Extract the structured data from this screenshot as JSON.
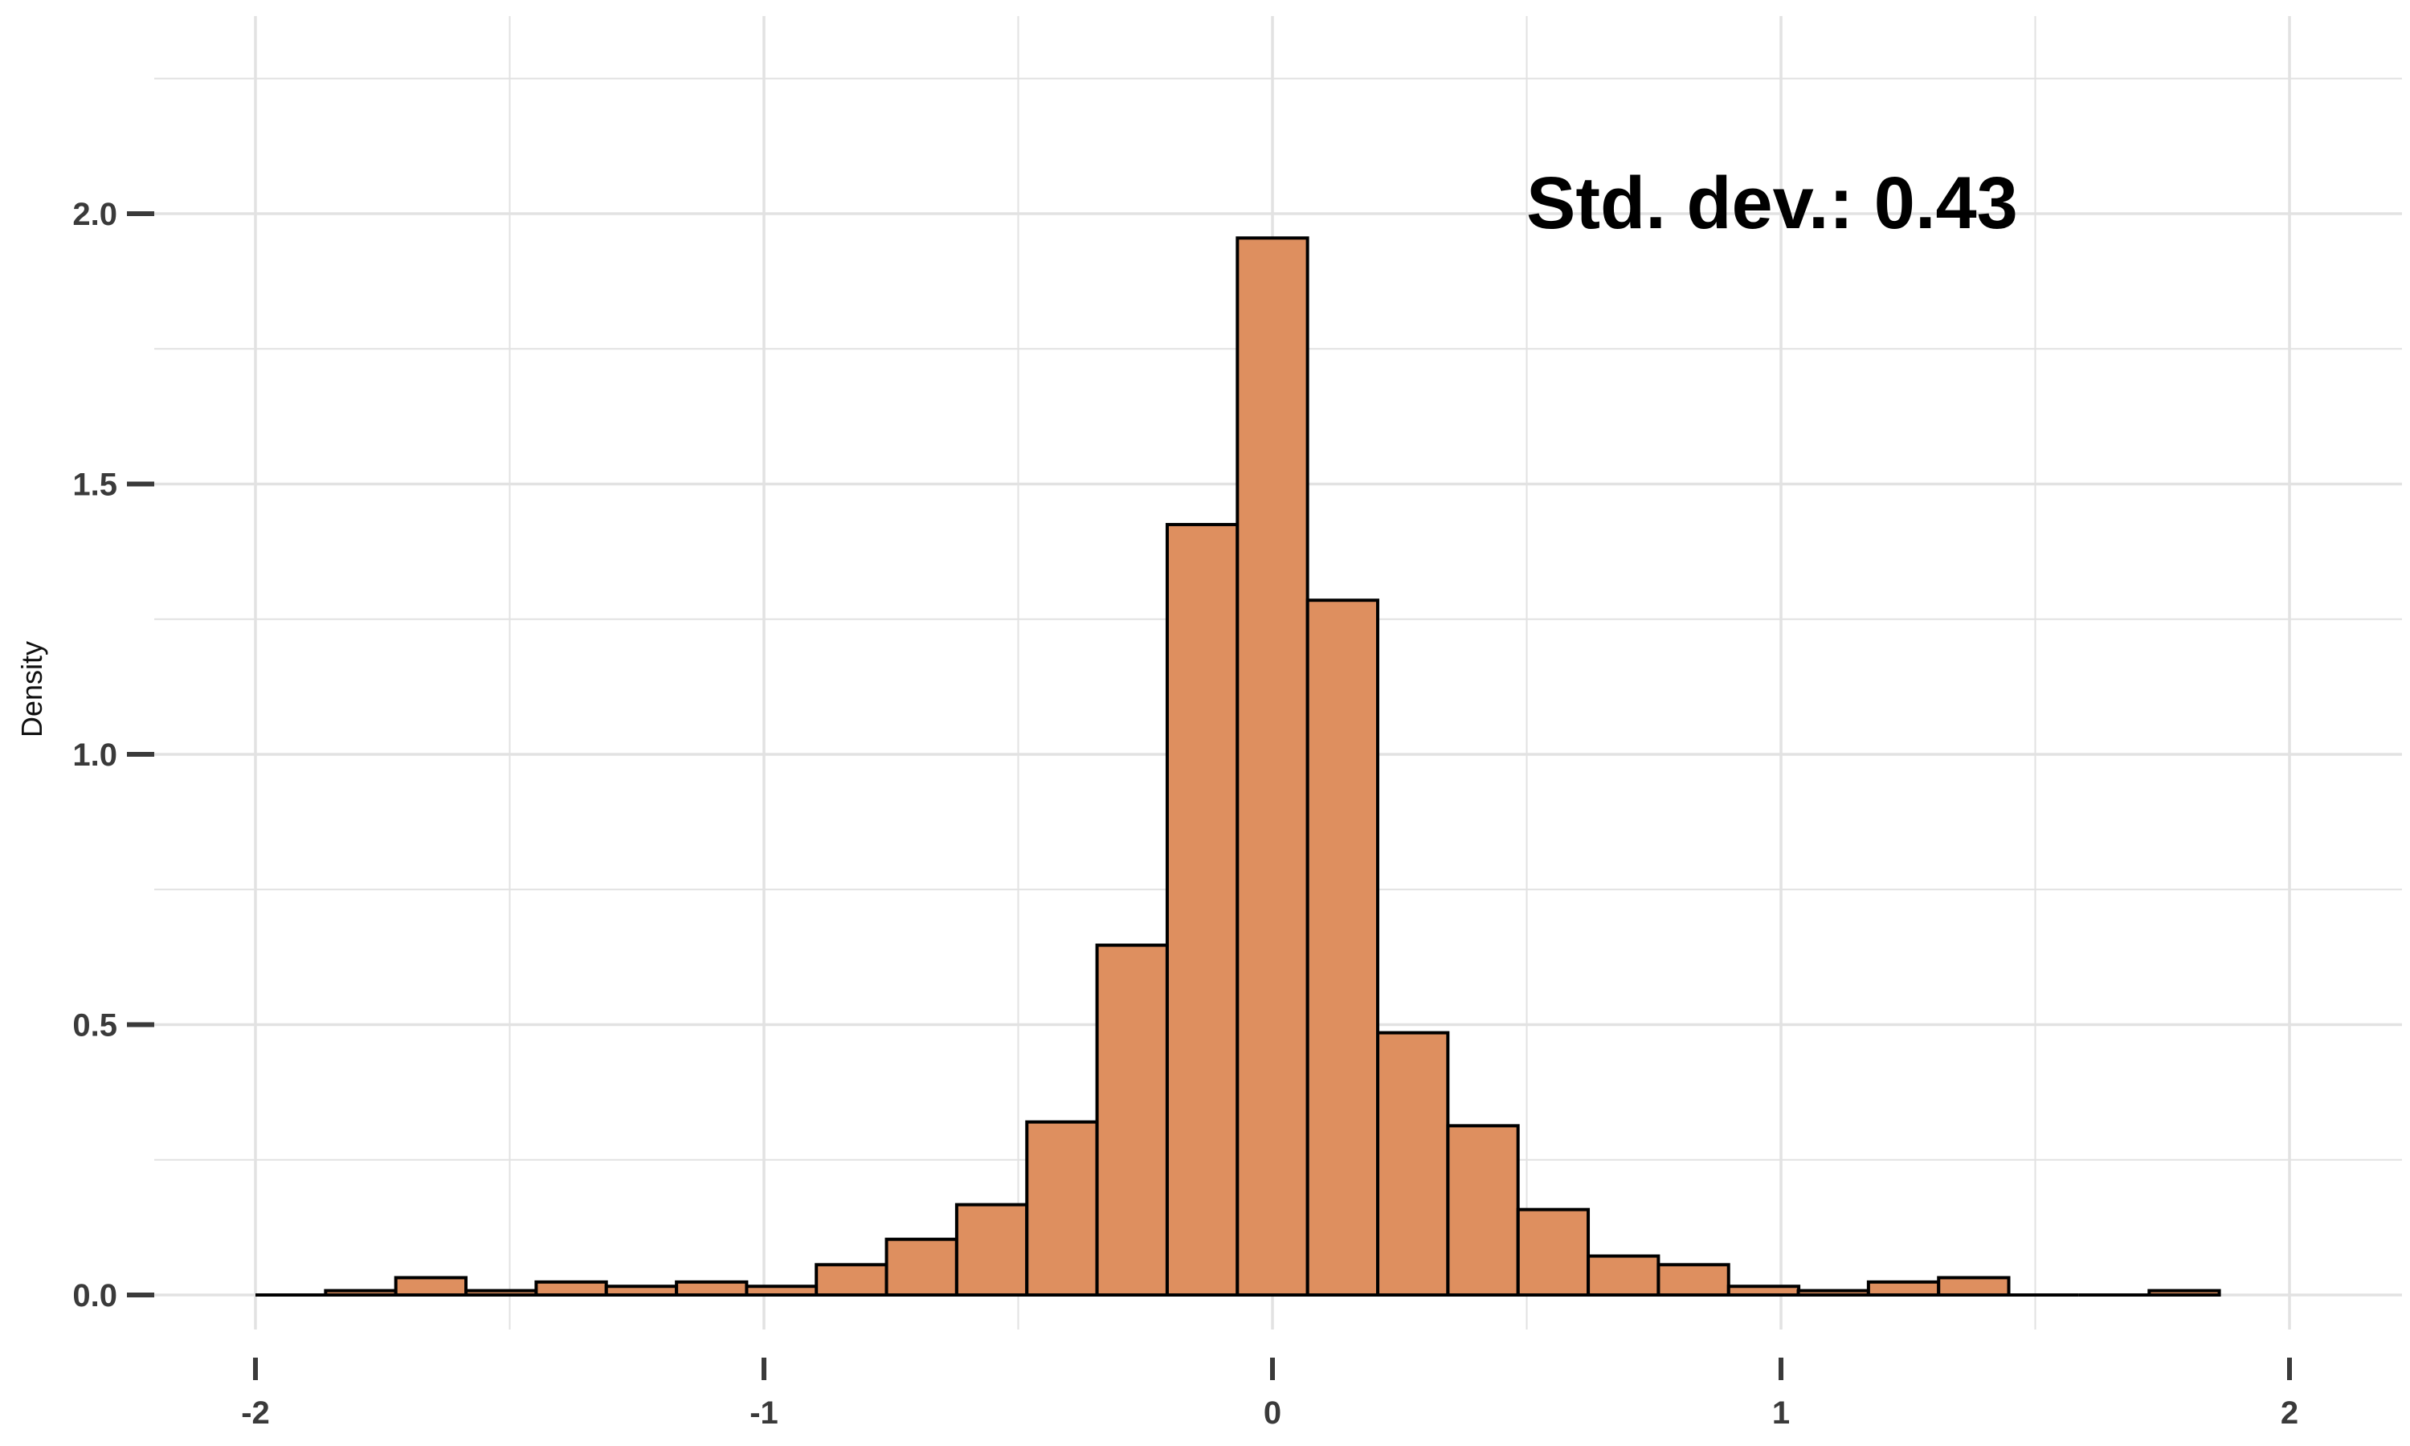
{
  "chart_data": {
    "type": "bar",
    "subtype": "histogram",
    "title": "",
    "xlabel": "",
    "ylabel": "Density",
    "annotation": "Std. dev.: 0.43",
    "xlim": [
      -2.2,
      2.2
    ],
    "ylim": [
      -0.08,
      2.24
    ],
    "x_ticks": [
      -2,
      -1,
      0,
      1,
      2
    ],
    "x_tick_labels": [
      "-2",
      "-1",
      "0",
      "1",
      "2"
    ],
    "y_ticks": [
      0.0,
      0.5,
      1.0,
      1.5,
      2.0
    ],
    "y_tick_labels": [
      "0.0",
      "0.5",
      "1.0",
      "1.5",
      "2.0"
    ],
    "x_minor_grid": [
      -1.5,
      -0.5,
      0.5,
      1.5
    ],
    "y_minor_grid": [
      0.25,
      0.75,
      1.25,
      1.75,
      2.25
    ],
    "grid": true,
    "bin_width": 0.1379,
    "bins_left": [
      -2.0,
      -1.862,
      -1.724,
      -1.586,
      -1.448,
      -1.31,
      -1.172,
      -1.034,
      -0.897,
      -0.759,
      -0.621,
      -0.483,
      -0.345,
      -0.207,
      -0.069,
      0.069,
      0.207,
      0.345,
      0.483,
      0.621,
      0.759,
      0.897,
      1.034,
      1.172,
      1.31,
      1.448,
      1.586,
      1.724
    ],
    "values": [
      0.0,
      0.008,
      0.032,
      0.008,
      0.024,
      0.016,
      0.024,
      0.016,
      0.056,
      0.103,
      0.167,
      0.32,
      0.647,
      1.425,
      1.955,
      1.285,
      0.485,
      0.313,
      0.158,
      0.072,
      0.056,
      0.016,
      0.008,
      0.024,
      0.032,
      0.0,
      0.0,
      0.008
    ],
    "colors": {
      "bar_fill": "#DE8F5F",
      "bar_stroke": "#000000",
      "grid": "#e2e2e2",
      "tick_mark": "#3a3a3a"
    }
  }
}
